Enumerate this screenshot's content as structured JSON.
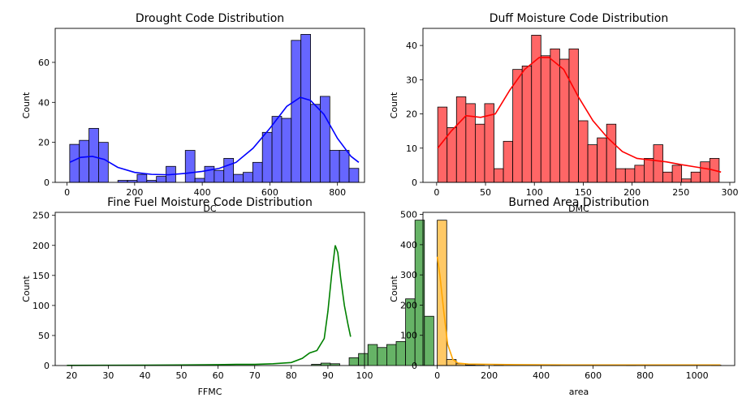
{
  "chart_data": [
    {
      "type": "bar",
      "title": "Drought Code Distribution",
      "xlabel": "DC",
      "ylabel": "Count",
      "xlim": [
        -35,
        880
      ],
      "ylim": [
        0,
        77
      ],
      "xticks": [
        0,
        200,
        400,
        600,
        800
      ],
      "yticks": [
        0,
        20,
        40,
        60
      ],
      "color": "#0000ff",
      "bin_start": 7.9,
      "bin_width": 28.5,
      "counts": [
        19,
        21,
        27,
        20,
        0,
        1,
        1,
        4,
        1,
        3,
        8,
        0,
        16,
        2,
        8,
        6,
        12,
        4,
        5,
        10,
        25,
        33,
        32,
        71,
        74,
        39,
        43,
        16,
        16,
        7
      ],
      "kde": [
        [
          7.9,
          10
        ],
        [
          40,
          12.5
        ],
        [
          75,
          13
        ],
        [
          110,
          11.5
        ],
        [
          150,
          7.5
        ],
        [
          200,
          5
        ],
        [
          250,
          4
        ],
        [
          300,
          3.8
        ],
        [
          350,
          4.5
        ],
        [
          400,
          5.5
        ],
        [
          450,
          7
        ],
        [
          500,
          10
        ],
        [
          550,
          17
        ],
        [
          600,
          27
        ],
        [
          650,
          38
        ],
        [
          690,
          42.5
        ],
        [
          720,
          41
        ],
        [
          760,
          34
        ],
        [
          800,
          22
        ],
        [
          840,
          13
        ],
        [
          863,
          10
        ]
      ]
    },
    {
      "type": "bar",
      "title": "Duff Moisture Code Distribution",
      "xlabel": "DMC",
      "ylabel": "Count",
      "xlim": [
        -14,
        305
      ],
      "ylim": [
        0,
        45
      ],
      "xticks": [
        0,
        50,
        100,
        150,
        200,
        250,
        300
      ],
      "yticks": [
        0,
        10,
        20,
        30,
        40
      ],
      "color": "#ff0000",
      "bin_start": 1.1,
      "bin_width": 9.6,
      "counts": [
        22,
        16,
        25,
        23,
        17,
        23,
        4,
        12,
        33,
        34,
        43,
        37,
        39,
        36,
        39,
        18,
        11,
        13,
        17,
        4,
        4,
        5,
        7,
        11,
        3,
        5,
        1,
        3,
        6,
        7
      ],
      "kde": [
        [
          1.1,
          10
        ],
        [
          15,
          15
        ],
        [
          30,
          19.5
        ],
        [
          45,
          19
        ],
        [
          60,
          20
        ],
        [
          75,
          27
        ],
        [
          90,
          33
        ],
        [
          105,
          36.5
        ],
        [
          115,
          36.5
        ],
        [
          130,
          33
        ],
        [
          145,
          25
        ],
        [
          160,
          18
        ],
        [
          175,
          13
        ],
        [
          190,
          9
        ],
        [
          205,
          7
        ],
        [
          220,
          6.5
        ],
        [
          235,
          6
        ],
        [
          250,
          5.2
        ],
        [
          265,
          4.5
        ],
        [
          280,
          3.8
        ],
        [
          291,
          3
        ]
      ]
    },
    {
      "type": "bar",
      "title": "Fine Fuel Moisture Code Distribution",
      "xlabel": "FFMC",
      "ylabel": "Count",
      "xlim": [
        15.5,
        100
      ],
      "ylim": [
        0,
        255
      ],
      "xticks": [
        20,
        30,
        40,
        50,
        60,
        70,
        80,
        90,
        100
      ],
      "yticks": [
        0,
        50,
        100,
        150,
        200,
        250
      ],
      "color": "#008000",
      "bin_start": 18.7,
      "bin_width": 2.57,
      "counts": [
        0,
        0,
        0,
        0,
        0,
        0,
        0,
        0,
        0,
        0,
        0,
        0,
        0,
        0,
        0,
        0,
        0,
        0,
        0,
        0,
        0,
        0,
        0,
        0,
        0,
        0,
        2,
        4,
        3,
        0,
        13,
        20,
        35,
        30,
        35,
        40,
        111,
        242,
        82,
        0
      ],
      "kde": [
        [
          18.7,
          0.3
        ],
        [
          30,
          0.5
        ],
        [
          40,
          0.6
        ],
        [
          50,
          1
        ],
        [
          60,
          1.5
        ],
        [
          65,
          2
        ],
        [
          70,
          2
        ],
        [
          75,
          3
        ],
        [
          80,
          5
        ],
        [
          83,
          12
        ],
        [
          85,
          21
        ],
        [
          87,
          25
        ],
        [
          89,
          45
        ],
        [
          90,
          90
        ],
        [
          91,
          150
        ],
        [
          92,
          200
        ],
        [
          92.7,
          188
        ],
        [
          93.5,
          145
        ],
        [
          94.5,
          100
        ],
        [
          95.5,
          68
        ],
        [
          96.2,
          48
        ]
      ]
    },
    {
      "type": "bar",
      "title": "Burned Area Distribution",
      "xlabel": "area",
      "ylabel": "Count",
      "xlim": [
        -55,
        1145
      ],
      "ylim": [
        0,
        507
      ],
      "xticks": [
        0,
        200,
        400,
        600,
        800,
        1000
      ],
      "yticks": [
        0,
        100,
        200,
        300,
        400,
        500
      ],
      "color": "#ffa500",
      "bin_start": 0,
      "bin_width": 36.4,
      "counts": [
        481,
        20,
        6,
        2,
        1,
        0,
        1,
        0,
        0,
        0,
        0,
        0,
        1,
        0,
        0,
        0,
        0,
        0,
        0,
        0,
        1,
        0,
        0,
        0,
        0,
        0,
        0,
        0,
        0,
        1
      ],
      "kde": [
        [
          0,
          360
        ],
        [
          10,
          300
        ],
        [
          25,
          180
        ],
        [
          40,
          70
        ],
        [
          60,
          20
        ],
        [
          80,
          8
        ],
        [
          120,
          5
        ],
        [
          200,
          4
        ],
        [
          300,
          3
        ],
        [
          500,
          2
        ],
        [
          700,
          2
        ],
        [
          900,
          2
        ],
        [
          1090,
          2
        ]
      ]
    }
  ]
}
